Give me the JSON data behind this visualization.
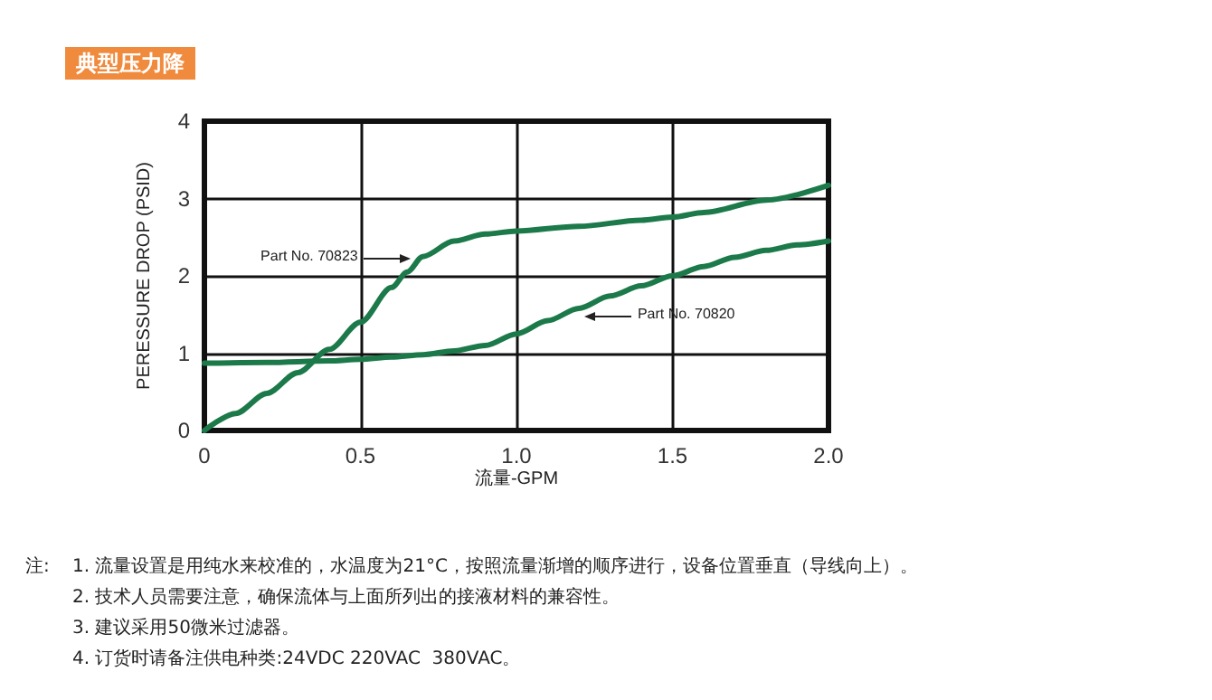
{
  "chart_data": {
    "type": "line",
    "title": "典型压力降",
    "xlabel": "流量-GPM",
    "ylabel": "PERESSURE DROP (PSID)",
    "series": [
      {
        "color": "#1c7a4a",
        "x": [
          0,
          0.1,
          0.2,
          0.3,
          0.4,
          0.5,
          0.6,
          0.65,
          0.7,
          0.8,
          0.9,
          1.0,
          1.2,
          1.4,
          1.5,
          1.6,
          1.8,
          2.0
        ],
        "values": [
          0,
          0.22,
          0.48,
          0.75,
          1.05,
          1.4,
          1.85,
          2.05,
          2.25,
          2.45,
          2.54,
          2.58,
          2.64,
          2.72,
          2.76,
          2.82,
          2.98,
          3.17
        ]
      },
      {
        "color": "#1c7a4a",
        "x": [
          0,
          0.2,
          0.4,
          0.5,
          0.6,
          0.7,
          0.8,
          0.9,
          1.0,
          1.1,
          1.2,
          1.3,
          1.4,
          1.5,
          1.6,
          1.7,
          1.8,
          1.9,
          2.0
        ],
        "values": [
          0.87,
          0.88,
          0.9,
          0.92,
          0.95,
          0.98,
          1.03,
          1.1,
          1.25,
          1.42,
          1.58,
          1.74,
          1.87,
          2.0,
          2.12,
          2.24,
          2.33,
          2.4,
          2.45
        ]
      }
    ],
    "xlim": [
      0,
      2
    ],
    "xticks": [
      0,
      {
        "value": 0.5,
        "label": "0.5"
      },
      {
        "value": 1,
        "label": "1.0"
      },
      {
        "value": 1.5,
        "label": "1.5"
      },
      {
        "value": 2,
        "label": "2.0"
      }
    ],
    "ylim": [
      0,
      4
    ],
    "yticks": [
      0,
      1,
      2,
      3,
      4
    ],
    "grid": true,
    "marker": "none",
    "line_style": "solid",
    "annotations": [
      {
        "text": "Part No. 70823",
        "x": 0.66,
        "y": 2.22
      },
      {
        "text": "Part No. 70820",
        "x": 1.22,
        "y": 1.47
      },
      "注:",
      "1. 流量设置是用纯水来校准的，水温度为21°C，按照流量渐增的顺序进行，设备位置垂直（导线向上）。",
      "2. 技术人员需要注意，确保流体与上面所列出的接液材料的兼容性。",
      "3. 建议采用50微米过滤器。",
      "4. 订货时请备注供电种类:24VDC 220VAC  380VAC。"
    ]
  }
}
